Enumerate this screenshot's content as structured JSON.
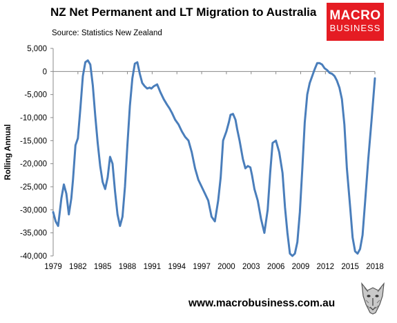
{
  "header": {
    "title": "NZ Net Permanent and LT Migration to Australia",
    "source": "Source: Statistics New Zealand"
  },
  "logo": {
    "line1": "MACRO",
    "line2": "BUSINESS",
    "color": "#e51c23"
  },
  "footer": {
    "website": "www.macrobusiness.com.au"
  },
  "chart_data": {
    "type": "line",
    "title": "NZ Net Permanent and LT Migration to Australia",
    "ylabel": "Rolling Annual",
    "xlabel": "",
    "xlim": [
      1979,
      2018
    ],
    "ylim": [
      -40000,
      5000
    ],
    "x_ticks": [
      1979,
      1982,
      1985,
      1988,
      1991,
      1994,
      1997,
      2000,
      2003,
      2006,
      2009,
      2012,
      2015,
      2018
    ],
    "y_ticks": [
      5000,
      0,
      -5000,
      -10000,
      -15000,
      -20000,
      -25000,
      -30000,
      -35000,
      -40000
    ],
    "x_tick_labels": [
      "1979",
      "1982",
      "1985",
      "1988",
      "1991",
      "1994",
      "1997",
      "2000",
      "2003",
      "2006",
      "2009",
      "2012",
      "2015",
      "2018"
    ],
    "y_tick_labels": [
      "5,000",
      "0",
      "-5,000",
      "-10,000",
      "-15,000",
      "-20,000",
      "-25,000",
      "-30,000",
      "-35,000",
      "-40,000"
    ],
    "grid": false,
    "series_color": "#4a7ebb",
    "series": [
      {
        "x": [
          1979.0,
          1979.3,
          1979.6,
          1980.0,
          1980.3,
          1980.6,
          1980.9,
          1981.2,
          1981.4,
          1981.7,
          1982.0,
          1982.3,
          1982.6,
          1982.9,
          1983.2,
          1983.5,
          1983.8,
          1984.1,
          1984.4,
          1984.7,
          1985.0,
          1985.3,
          1985.6,
          1985.9,
          1986.2,
          1986.5,
          1986.8,
          1987.1,
          1987.4,
          1987.7,
          1988.0,
          1988.3,
          1988.6,
          1988.9,
          1989.2,
          1989.5,
          1989.8,
          1990.1,
          1990.4,
          1990.7,
          1990.9,
          1991.2,
          1991.6,
          1992.0,
          1992.4,
          1992.8,
          1993.1,
          1993.4,
          1993.8,
          1994.2,
          1994.6,
          1995.0,
          1995.4,
          1995.8,
          1996.2,
          1996.6,
          1997.0,
          1997.4,
          1997.8,
          1998.2,
          1998.6,
          1999.0,
          1999.3,
          1999.6,
          2000.0,
          2000.3,
          2000.5,
          2000.8,
          2001.1,
          2001.3,
          2001.6,
          2002.0,
          2002.3,
          2002.6,
          2002.9,
          2003.1,
          2003.4,
          2003.8,
          2004.2,
          2004.6,
          2005.0,
          2005.3,
          2005.6,
          2006.0,
          2006.4,
          2006.8,
          2007.1,
          2007.4,
          2007.7,
          2008.0,
          2008.3,
          2008.6,
          2008.9,
          2009.2,
          2009.5,
          2009.8,
          2010.1,
          2010.4,
          2010.7,
          2011.0,
          2011.3,
          2011.6,
          2011.9,
          2012.2,
          2012.5,
          2012.8,
          2013.1,
          2013.4,
          2013.7,
          2014.0,
          2014.3,
          2014.6,
          2015.0,
          2015.3,
          2015.6,
          2015.9,
          2016.2,
          2016.5,
          2016.8,
          2017.2,
          2017.6,
          2018.0
        ],
        "values": [
          -30500,
          -32500,
          -33500,
          -27500,
          -24500,
          -26500,
          -31000,
          -27500,
          -23500,
          -16000,
          -14500,
          -8000,
          -1000,
          2000,
          2400,
          1500,
          -3000,
          -9500,
          -15500,
          -20500,
          -24000,
          -25500,
          -23000,
          -18500,
          -20000,
          -26000,
          -31000,
          -33500,
          -31500,
          -25000,
          -16000,
          -7500,
          -1500,
          1700,
          2000,
          -500,
          -2500,
          -3200,
          -3700,
          -3500,
          -3700,
          -3200,
          -2800,
          -4500,
          -6000,
          -7200,
          -8000,
          -9000,
          -10500,
          -11500,
          -13000,
          -14200,
          -15000,
          -17500,
          -21000,
          -23500,
          -25000,
          -26500,
          -28000,
          -31500,
          -32500,
          -28000,
          -23000,
          -15000,
          -13000,
          -11000,
          -9400,
          -9200,
          -10500,
          -12500,
          -15000,
          -19000,
          -21000,
          -20500,
          -20800,
          -22500,
          -25500,
          -28000,
          -32000,
          -35000,
          -30000,
          -22000,
          -15500,
          -15000,
          -17500,
          -22000,
          -29500,
          -35000,
          -39500,
          -40000,
          -39500,
          -37000,
          -30500,
          -21000,
          -11000,
          -5000,
          -2500,
          -1000,
          500,
          1800,
          1800,
          1500,
          700,
          300,
          -300,
          -500,
          -1000,
          -2000,
          -3500,
          -6000,
          -11500,
          -21000,
          -29500,
          -36000,
          -39000,
          -39500,
          -38500,
          -35500,
          -28500,
          -19000,
          -10500,
          -1500
        ],
        "_order": "reversed-to-chronological-below"
      }
    ]
  }
}
